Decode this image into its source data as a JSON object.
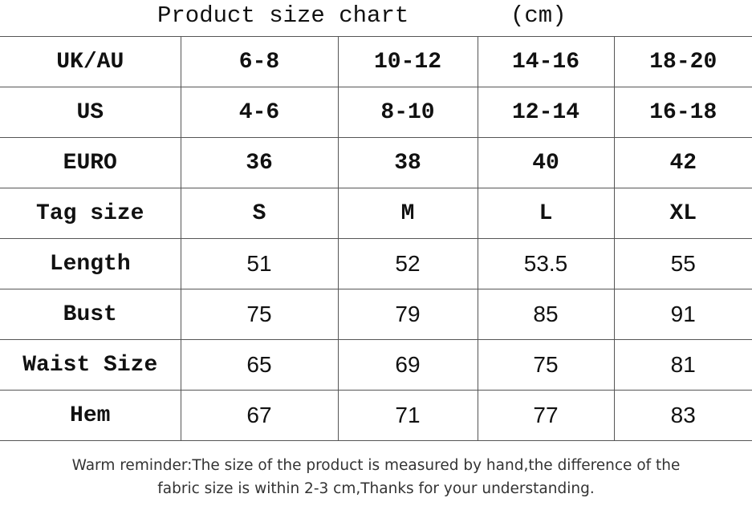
{
  "header": {
    "title": "Product size chart",
    "unit": "(cm)"
  },
  "table": {
    "rows": [
      [
        "UK/AU",
        "6-8",
        "10-12",
        "14-16",
        "18-20"
      ],
      [
        "US",
        "4-6",
        "8-10",
        "12-14",
        "16-18"
      ],
      [
        "EURO",
        "36",
        "38",
        "40",
        "42"
      ],
      [
        "Tag size",
        "S",
        "M",
        "L",
        "XL"
      ],
      [
        "Length",
        "51",
        "52",
        "53.5",
        "55"
      ],
      [
        "Bust",
        "75",
        "79",
        "85",
        "91"
      ],
      [
        "Waist Size",
        "65",
        "69",
        "75",
        "81"
      ],
      [
        "Hem",
        "67",
        "71",
        "77",
        "83"
      ]
    ]
  },
  "footer": {
    "lines": [
      "Warm reminder:The size of the product is measured by hand,the difference of the",
      "fabric size is within 2-3 cm,Thanks for your understanding."
    ]
  }
}
